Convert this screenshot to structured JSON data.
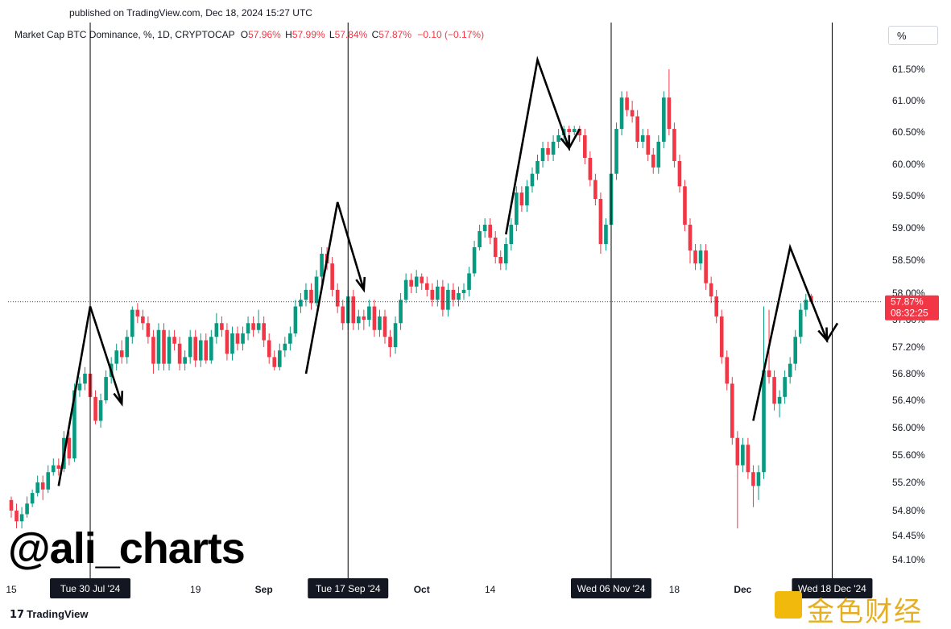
{
  "header": {
    "published": "published on TradingView.com, Dec 18, 2024 15:27 UTC"
  },
  "legend": {
    "symbol": "Market Cap BTC Dominance, %, 1D, CRYPTOCAP",
    "open_label": "O",
    "open": "57.96%",
    "high_label": "H",
    "high": "57.99%",
    "low_label": "L",
    "low": "57.84%",
    "close_label": "C",
    "close": "57.87%",
    "change": "−0.10 (−0.17%)"
  },
  "scale_button": "%",
  "watermark": "@ali_charts",
  "footer_logo": "TradingView",
  "corner_logo_text": "金色财经",
  "colors": {
    "up": "#089981",
    "down": "#f23645",
    "annotation": "#000000"
  },
  "chart_data": {
    "type": "candlestick",
    "y_ticks": [
      "61.50%",
      "61.00%",
      "60.50%",
      "60.00%",
      "59.50%",
      "59.00%",
      "58.50%",
      "58.00%",
      "57.60%",
      "57.20%",
      "56.80%",
      "56.40%",
      "56.00%",
      "55.60%",
      "55.20%",
      "54.80%",
      "54.45%",
      "54.10%"
    ],
    "y_tick_values": [
      61.5,
      61.0,
      60.5,
      60.0,
      59.5,
      59.0,
      58.5,
      58.0,
      57.6,
      57.2,
      56.8,
      56.4,
      56.0,
      55.6,
      55.2,
      54.8,
      54.45,
      54.1
    ],
    "x_ticks": [
      {
        "label": "15",
        "day": 0
      },
      {
        "label": "19",
        "day": 35
      },
      {
        "label": "Sep",
        "day": 48
      },
      {
        "label": "Oct",
        "day": 78
      },
      {
        "label": "14",
        "day": 91
      },
      {
        "label": "18",
        "day": 126
      },
      {
        "label": "Dec",
        "day": 139
      }
    ],
    "highlight_dates": [
      {
        "label": "Tue 30 Jul '24",
        "day": 15
      },
      {
        "label": "Tue 17 Sep '24",
        "day": 64
      },
      {
        "label": "Wed 06 Nov '24",
        "day": 114
      },
      {
        "label": "Wed 18 Dec '24",
        "day": 156
      }
    ],
    "current_price": {
      "value": 57.87,
      "label": "57.87%",
      "countdown": "08:32:25"
    },
    "candles": [
      [
        54.95,
        54.8,
        55.0,
        54.7
      ],
      [
        54.8,
        54.65,
        54.9,
        54.55
      ],
      [
        54.65,
        54.75,
        54.85,
        54.55
      ],
      [
        54.75,
        54.9,
        55.0,
        54.7
      ],
      [
        54.9,
        55.05,
        55.1,
        54.85
      ],
      [
        55.05,
        55.2,
        55.3,
        55.0
      ],
      [
        55.2,
        55.1,
        55.3,
        54.95
      ],
      [
        55.1,
        55.35,
        55.45,
        55.05
      ],
      [
        55.35,
        55.45,
        55.55,
        55.3
      ],
      [
        55.45,
        55.4,
        55.55,
        55.3
      ],
      [
        55.4,
        55.85,
        55.95,
        55.35
      ],
      [
        55.85,
        55.55,
        55.95,
        55.45
      ],
      [
        55.55,
        56.55,
        56.65,
        55.5
      ],
      [
        56.55,
        56.65,
        56.75,
        56.45
      ],
      [
        56.65,
        56.8,
        56.9,
        56.55
      ],
      [
        56.8,
        56.45,
        56.9,
        56.35
      ],
      [
        56.45,
        56.1,
        56.55,
        56.05
      ],
      [
        56.1,
        56.4,
        56.5,
        56.0
      ],
      [
        56.4,
        56.75,
        56.85,
        56.35
      ],
      [
        56.75,
        56.95,
        57.05,
        56.65
      ],
      [
        56.95,
        57.15,
        57.25,
        56.85
      ],
      [
        57.15,
        57.05,
        57.3,
        56.95
      ],
      [
        57.05,
        57.35,
        57.45,
        56.95
      ],
      [
        57.35,
        57.75,
        57.8,
        57.25
      ],
      [
        57.75,
        57.65,
        57.85,
        57.55
      ],
      [
        57.65,
        57.55,
        57.75,
        57.45
      ],
      [
        57.55,
        57.35,
        57.65,
        57.25
      ],
      [
        57.35,
        56.95,
        57.45,
        56.8
      ],
      [
        56.95,
        57.45,
        57.55,
        56.85
      ],
      [
        57.45,
        56.95,
        57.55,
        56.85
      ],
      [
        56.95,
        57.35,
        57.45,
        56.85
      ],
      [
        57.35,
        57.25,
        57.45,
        57.15
      ],
      [
        57.25,
        56.95,
        57.35,
        56.85
      ],
      [
        56.95,
        57.05,
        57.15,
        56.85
      ],
      [
        57.05,
        57.35,
        57.45,
        56.95
      ],
      [
        57.35,
        57.0,
        57.45,
        56.9
      ],
      [
        57.0,
        57.3,
        57.4,
        56.9
      ],
      [
        57.3,
        57.0,
        57.4,
        56.95
      ],
      [
        57.0,
        57.35,
        57.45,
        56.95
      ],
      [
        57.35,
        57.55,
        57.7,
        57.25
      ],
      [
        57.55,
        57.45,
        57.65,
        57.35
      ],
      [
        57.45,
        57.1,
        57.55,
        57.0
      ],
      [
        57.1,
        57.4,
        57.5,
        57.0
      ],
      [
        57.4,
        57.25,
        57.5,
        57.15
      ],
      [
        57.25,
        57.4,
        57.5,
        57.15
      ],
      [
        57.4,
        57.55,
        57.65,
        57.3
      ],
      [
        57.55,
        57.45,
        57.65,
        57.35
      ],
      [
        57.45,
        57.55,
        57.75,
        57.4
      ],
      [
        57.55,
        57.3,
        57.65,
        57.2
      ],
      [
        57.3,
        57.05,
        57.4,
        56.95
      ],
      [
        57.05,
        56.9,
        57.15,
        56.85
      ],
      [
        56.9,
        57.15,
        57.25,
        56.85
      ],
      [
        57.15,
        57.25,
        57.35,
        57.05
      ],
      [
        57.25,
        57.4,
        57.5,
        57.15
      ],
      [
        57.4,
        57.8,
        57.9,
        57.35
      ],
      [
        57.8,
        57.9,
        58.0,
        57.7
      ],
      [
        57.9,
        58.05,
        58.15,
        57.8
      ],
      [
        58.05,
        57.85,
        58.15,
        57.75
      ],
      [
        57.85,
        58.25,
        58.35,
        57.8
      ],
      [
        58.25,
        58.6,
        58.7,
        58.15
      ],
      [
        58.6,
        58.45,
        58.7,
        58.35
      ],
      [
        58.45,
        58.05,
        58.55,
        57.95
      ],
      [
        58.05,
        57.8,
        58.15,
        57.7
      ],
      [
        57.8,
        57.55,
        57.9,
        57.45
      ],
      [
        57.55,
        57.95,
        58.05,
        57.45
      ],
      [
        57.95,
        57.55,
        58.05,
        57.45
      ],
      [
        57.55,
        57.65,
        57.75,
        57.45
      ],
      [
        57.65,
        57.6,
        57.75,
        57.45
      ],
      [
        57.6,
        57.8,
        57.9,
        57.5
      ],
      [
        57.8,
        57.45,
        57.9,
        57.35
      ],
      [
        57.45,
        57.65,
        57.75,
        57.35
      ],
      [
        57.65,
        57.35,
        57.75,
        57.25
      ],
      [
        57.35,
        57.2,
        57.45,
        57.05
      ],
      [
        57.2,
        57.55,
        57.65,
        57.1
      ],
      [
        57.55,
        57.9,
        58.0,
        57.45
      ],
      [
        57.9,
        58.2,
        58.3,
        57.85
      ],
      [
        58.2,
        58.1,
        58.3,
        58.0
      ],
      [
        58.1,
        58.25,
        58.35,
        58.0
      ],
      [
        58.25,
        58.15,
        58.3,
        58.05
      ],
      [
        58.15,
        58.05,
        58.25,
        57.95
      ],
      [
        58.05,
        57.9,
        58.15,
        57.8
      ],
      [
        57.9,
        58.1,
        58.2,
        57.8
      ],
      [
        58.1,
        57.75,
        58.2,
        57.65
      ],
      [
        57.75,
        58.05,
        58.15,
        57.65
      ],
      [
        58.05,
        57.9,
        58.15,
        57.8
      ],
      [
        57.9,
        58.0,
        58.1,
        57.8
      ],
      [
        58.0,
        58.05,
        58.15,
        57.9
      ],
      [
        58.05,
        58.3,
        58.4,
        57.95
      ],
      [
        58.3,
        58.7,
        58.8,
        58.25
      ],
      [
        58.7,
        58.95,
        59.05,
        58.65
      ],
      [
        58.95,
        59.05,
        59.15,
        58.85
      ],
      [
        59.05,
        58.85,
        59.15,
        58.75
      ],
      [
        58.85,
        58.55,
        58.95,
        58.45
      ],
      [
        58.55,
        58.45,
        58.65,
        58.35
      ],
      [
        58.45,
        58.75,
        58.85,
        58.35
      ],
      [
        58.75,
        59.05,
        59.15,
        58.65
      ],
      [
        59.05,
        59.55,
        59.65,
        58.95
      ],
      [
        59.55,
        59.35,
        59.65,
        59.25
      ],
      [
        59.35,
        59.65,
        59.75,
        59.25
      ],
      [
        59.65,
        59.85,
        59.95,
        59.55
      ],
      [
        59.85,
        60.05,
        60.15,
        59.75
      ],
      [
        60.05,
        60.25,
        60.35,
        59.95
      ],
      [
        60.25,
        60.15,
        60.35,
        60.05
      ],
      [
        60.15,
        60.35,
        60.45,
        60.05
      ],
      [
        60.35,
        60.45,
        60.55,
        60.25
      ],
      [
        60.45,
        60.55,
        60.6,
        60.35
      ],
      [
        60.55,
        60.5,
        60.6,
        60.4
      ],
      [
        60.5,
        60.55,
        60.6,
        60.45
      ],
      [
        60.55,
        60.45,
        60.6,
        60.35
      ],
      [
        60.45,
        60.1,
        60.55,
        60.0
      ],
      [
        60.1,
        59.75,
        60.2,
        59.65
      ],
      [
        59.75,
        59.45,
        59.85,
        59.35
      ],
      [
        59.45,
        58.75,
        59.55,
        58.6
      ],
      [
        58.75,
        59.05,
        59.15,
        58.65
      ],
      [
        59.05,
        59.85,
        59.95,
        58.95
      ],
      [
        59.85,
        60.55,
        60.65,
        59.75
      ],
      [
        60.55,
        61.05,
        61.15,
        60.45
      ],
      [
        61.05,
        60.85,
        61.15,
        60.75
      ],
      [
        60.85,
        60.75,
        61.0,
        60.65
      ],
      [
        60.75,
        60.35,
        60.85,
        60.25
      ],
      [
        60.35,
        60.45,
        60.55,
        60.25
      ],
      [
        60.45,
        60.15,
        60.55,
        60.05
      ],
      [
        60.15,
        59.95,
        60.25,
        59.85
      ],
      [
        59.95,
        60.35,
        60.45,
        59.85
      ],
      [
        60.35,
        61.05,
        61.15,
        60.25
      ],
      [
        61.05,
        60.55,
        61.5,
        60.45
      ],
      [
        60.55,
        60.05,
        60.65,
        59.95
      ],
      [
        60.05,
        59.65,
        60.15,
        59.55
      ],
      [
        59.65,
        59.05,
        59.75,
        58.95
      ],
      [
        59.05,
        58.65,
        59.15,
        58.45
      ],
      [
        58.65,
        58.45,
        58.75,
        58.35
      ],
      [
        58.45,
        58.65,
        58.75,
        58.35
      ],
      [
        58.65,
        58.15,
        58.75,
        58.05
      ],
      [
        58.15,
        57.95,
        58.25,
        57.85
      ],
      [
        57.95,
        57.65,
        58.05,
        57.55
      ],
      [
        57.65,
        57.05,
        57.75,
        56.95
      ],
      [
        57.05,
        56.65,
        57.15,
        56.55
      ],
      [
        56.65,
        55.85,
        56.75,
        55.75
      ],
      [
        55.85,
        55.45,
        55.95,
        54.55
      ],
      [
        55.45,
        55.75,
        55.85,
        55.35
      ],
      [
        55.75,
        55.35,
        55.85,
        55.25
      ],
      [
        55.35,
        55.15,
        55.45,
        54.85
      ],
      [
        55.15,
        55.35,
        55.45,
        54.95
      ],
      [
        55.35,
        56.85,
        57.8,
        55.25
      ],
      [
        56.85,
        56.75,
        57.75,
        56.65
      ],
      [
        56.75,
        56.35,
        56.85,
        56.25
      ],
      [
        56.35,
        56.45,
        56.55,
        56.15
      ],
      [
        56.45,
        56.75,
        56.85,
        56.35
      ],
      [
        56.75,
        56.95,
        57.05,
        56.65
      ],
      [
        56.95,
        57.35,
        57.45,
        56.85
      ],
      [
        57.35,
        57.75,
        57.85,
        57.25
      ],
      [
        57.75,
        57.9,
        57.99,
        57.65
      ],
      [
        57.96,
        57.87,
        57.99,
        57.84
      ]
    ],
    "annotation_paths": [
      [
        [
          9,
          55.15
        ],
        [
          15,
          57.8
        ],
        [
          21,
          56.35
        ]
      ],
      [
        [
          56,
          56.8
        ],
        [
          62,
          59.4
        ],
        [
          67,
          58.05
        ]
      ],
      [
        [
          94,
          58.9
        ],
        [
          100,
          61.65
        ],
        [
          106,
          60.25
        ],
        [
          108,
          60.55
        ]
      ],
      [
        [
          141,
          56.1
        ],
        [
          148,
          58.7
        ],
        [
          155,
          57.3
        ],
        [
          157,
          57.55
        ]
      ]
    ]
  }
}
